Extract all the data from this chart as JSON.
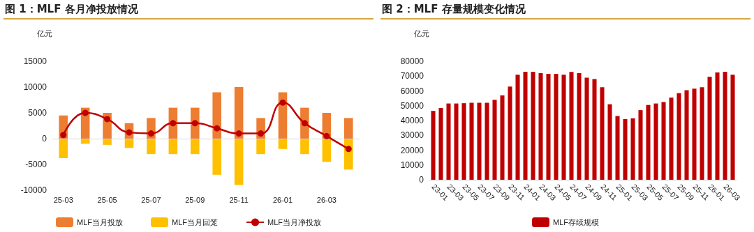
{
  "chart_data": [
    {
      "type": "bar",
      "title": "图 1：MLF 各月净投放情况",
      "ylabel": "亿元",
      "categories": [
        "25-03",
        null,
        "25-05",
        null,
        "25-07",
        null,
        "25-09",
        null,
        "25-11",
        null,
        "26-01",
        null,
        "26-03",
        null
      ],
      "series": [
        {
          "name": "MLF当月投放",
          "color": "#ed7d31",
          "values": [
            4500,
            6000,
            5000,
            3000,
            4000,
            6000,
            6000,
            9000,
            10000,
            4000,
            9000,
            6000,
            5000,
            4000
          ]
        },
        {
          "name": "MLF当月回笼",
          "color": "#ffc000",
          "values": [
            -3800,
            -1000,
            -1200,
            -1800,
            -3000,
            -3000,
            -3000,
            -7000,
            -9000,
            -3000,
            -2000,
            -3000,
            -4500,
            -6000
          ]
        },
        {
          "name": "MLF当月净投放",
          "type": "line",
          "color": "#c00000",
          "values": [
            700,
            5000,
            3800,
            1200,
            1000,
            3000,
            3000,
            2000,
            1000,
            1000,
            7000,
            3000,
            500,
            -2000
          ]
        }
      ],
      "stacked": true,
      "marker": "circle",
      "ref_lines": [
        {
          "axis": "y",
          "value": 0,
          "color": "#d9d9d9"
        }
      ],
      "ylim": [
        -10000,
        15000
      ],
      "yticks": [
        -10000,
        -5000,
        0,
        5000,
        10000,
        15000
      ],
      "grid": false,
      "legend": "bottom"
    },
    {
      "type": "bar",
      "title": "图 2：MLF 存量规模变化情况",
      "ylabel": "亿元",
      "categories": [
        "23-01",
        null,
        "23-03",
        null,
        "23-05",
        null,
        "23-07",
        null,
        "23-09",
        null,
        "23-11",
        null,
        "24-01",
        null,
        "24-03",
        null,
        "24-05",
        null,
        "24-07",
        null,
        "24-09",
        null,
        "24-11",
        null,
        "25-01",
        null,
        "25-03",
        null,
        "25-05",
        null,
        "25-07",
        null,
        "25-09",
        null,
        "25-11",
        null,
        "26-01",
        null,
        "26-03",
        null
      ],
      "series": [
        {
          "name": "MLF存续规模",
          "color": "#c00000",
          "values": [
            46500,
            48500,
            51500,
            51500,
            51700,
            52000,
            52000,
            52000,
            54000,
            57000,
            63000,
            71000,
            73000,
            73000,
            72000,
            71500,
            71500,
            71000,
            72800,
            72000,
            69000,
            68000,
            62500,
            51000,
            43000,
            41000,
            41500,
            47000,
            50500,
            51500,
            52500,
            55500,
            58500,
            60500,
            61500,
            62500,
            69500,
            72500,
            73000,
            71000
          ]
        }
      ],
      "ylim": [
        0,
        80000
      ],
      "yticks": [
        0,
        10000,
        20000,
        30000,
        40000,
        50000,
        60000,
        70000,
        80000
      ],
      "grid": false,
      "legend": "bottom"
    }
  ]
}
